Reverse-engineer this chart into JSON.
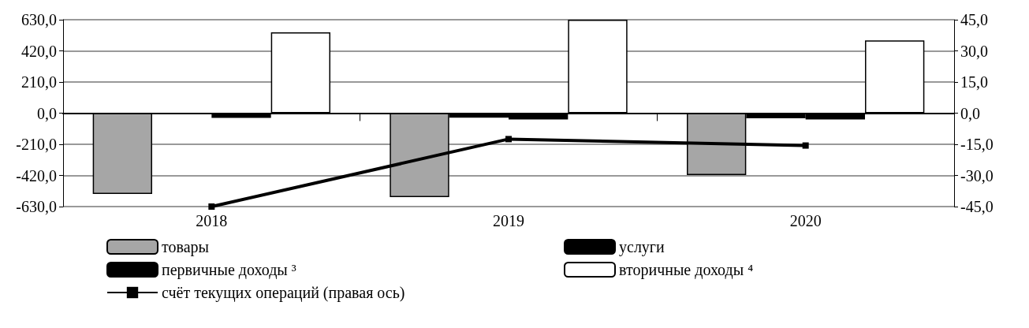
{
  "chart_data": {
    "type": "bar",
    "categories": [
      "2018",
      "2019",
      "2020"
    ],
    "series": [
      {
        "name": "товары",
        "color": "#a6a6a6",
        "values": [
          -545,
          -566,
          -418
        ]
      },
      {
        "name": "услуги",
        "color": "#000000",
        "values": [
          -5,
          -30,
          -35
        ]
      },
      {
        "name": "первичные доходы ³",
        "color": "#000000",
        "values": [
          -32,
          -42,
          -42
        ]
      },
      {
        "name": "вторичные доходы ⁴",
        "color": "#ffffff",
        "values": [
          545,
          630,
          491
        ]
      },
      {
        "name": "счёт текущих операций (правая ось)",
        "type": "line",
        "axis": "y2",
        "color": "#000000",
        "marker": "square",
        "values": [
          -45,
          -12.5,
          -15.6
        ]
      }
    ],
    "ylim": [
      -630,
      630
    ],
    "yticks": [
      {
        "value": -630,
        "label": "-630,0"
      },
      {
        "value": -420,
        "label": "-420,0"
      },
      {
        "value": -210,
        "label": "-210,0"
      },
      {
        "value": 0,
        "label": "0,0"
      },
      {
        "value": 210,
        "label": "210,0"
      },
      {
        "value": 420,
        "label": "420,0"
      },
      {
        "value": 630,
        "label": "630,0"
      }
    ],
    "y2lim": [
      -45,
      45
    ],
    "y2ticks": [
      {
        "value": -45,
        "label": "-45,0"
      },
      {
        "value": -30,
        "label": "-30,0"
      },
      {
        "value": -15,
        "label": "-15,0"
      },
      {
        "value": 0,
        "label": "0,0"
      },
      {
        "value": 15,
        "label": "15,0"
      },
      {
        "value": 30,
        "label": "30,0"
      },
      {
        "value": 45,
        "label": "45,0"
      }
    ],
    "grid": "y",
    "legend": "bottom"
  }
}
